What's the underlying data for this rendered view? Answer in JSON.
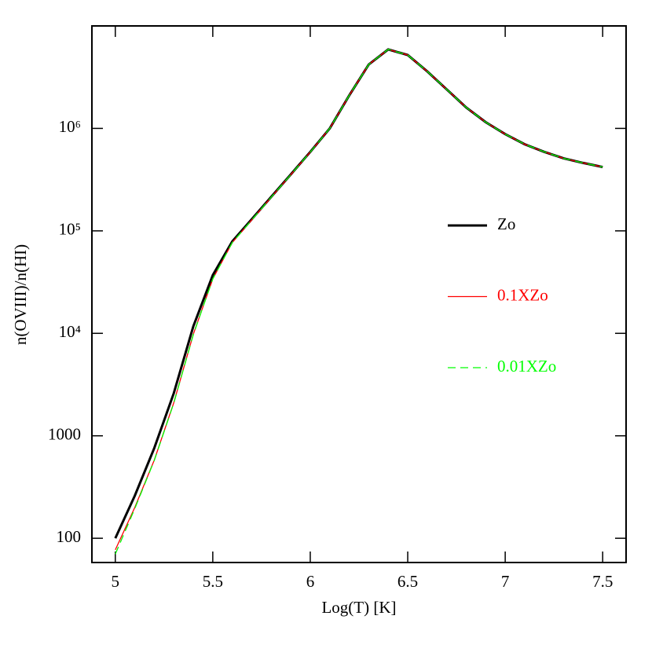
{
  "chart_data": {
    "type": "line",
    "xlabel": "Log(T)  [K]",
    "ylabel": "n(OVIII)/n(HI)",
    "yscale": "log",
    "x": [
      5.0,
      5.1,
      5.2,
      5.3,
      5.4,
      5.5,
      5.6,
      5.7,
      5.8,
      5.9,
      6.0,
      6.1,
      6.2,
      6.3,
      6.4,
      6.5,
      6.6,
      6.7,
      6.8,
      6.9,
      7.0,
      7.1,
      7.2,
      7.3,
      7.4,
      7.5
    ],
    "series": [
      {
        "name": "Zo",
        "color": "#000000",
        "dash": "solid",
        "width": 3,
        "values": [
          100,
          260,
          760,
          2600,
          11700,
          37000,
          79000,
          130000,
          215000,
          355000,
          590000,
          1000000,
          2100000,
          4200000,
          5900000,
          5200000,
          3600000,
          2400000,
          1600000,
          1150000,
          880000,
          700000,
          590000,
          510000,
          460000,
          420000
        ]
      },
      {
        "name": "0.1XZo",
        "color": "#ff0000",
        "dash": "solid",
        "width": 1.3,
        "values": [
          77,
          200,
          580,
          2100,
          9800,
          34000,
          77000,
          128000,
          213000,
          353000,
          588000,
          1000000,
          2100000,
          4200000,
          5900000,
          5200000,
          3600000,
          2400000,
          1600000,
          1150000,
          880000,
          700000,
          590000,
          510000,
          460000,
          420000
        ]
      },
      {
        "name": "0.01XZo",
        "color": "#00ff00",
        "dash": "dashed",
        "width": 1.3,
        "values": [
          70,
          195,
          575,
          2080,
          9700,
          34000,
          77000,
          128000,
          213000,
          353000,
          588000,
          1000000,
          2100000,
          4200000,
          5900000,
          5200000,
          3600000,
          2400000,
          1600000,
          1150000,
          880000,
          700000,
          590000,
          510000,
          460000,
          420000
        ]
      }
    ],
    "xlim": [
      4.88,
      7.62
    ],
    "ylim": [
      58,
      10000000
    ],
    "xticks": [
      5,
      5.5,
      6,
      6.5,
      7,
      7.5
    ],
    "yticks": [
      100,
      1000,
      {
        "value": 10000,
        "label": "10⁴"
      },
      {
        "value": 100000,
        "label": "10⁵"
      },
      {
        "value": 1000000,
        "label": "10⁶"
      }
    ]
  }
}
